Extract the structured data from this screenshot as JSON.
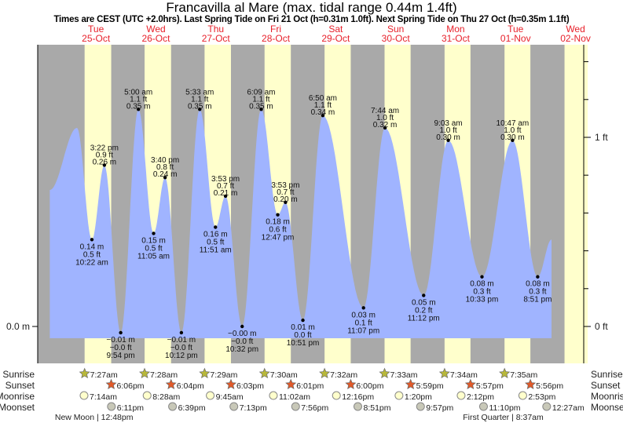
{
  "header": {
    "title": "Francavilla al Mare (max. tidal range 0.44m 1.4ft)",
    "subtitle": "Times are CEST (UTC +2.0hrs). Last Spring Tide on Fri 21 Oct (h=0.31m 1.0ft). Next Spring Tide on Thu 27 Oct (h=0.35m 1.1ft)"
  },
  "colors": {
    "day": "#ffffcc",
    "night": "#a9a9a9",
    "water": "#a0b4ff",
    "daylabel": "#e8202a",
    "sunrise": "#b8b83a",
    "sunset": "#e05a2a",
    "moonrise": "#ffffcc",
    "moonset": "#c8c8b8"
  },
  "chart_data": {
    "type": "area",
    "title": "Francavilla al Mare (max. tidal range 0.44m 1.4ft)",
    "days": [
      {
        "dow": "Tue",
        "date": "25-Oct"
      },
      {
        "dow": "Wed",
        "date": "26-Oct"
      },
      {
        "dow": "Thu",
        "date": "27-Oct"
      },
      {
        "dow": "Fri",
        "date": "28-Oct"
      },
      {
        "dow": "Sat",
        "date": "29-Oct"
      },
      {
        "dow": "Sun",
        "date": "30-Oct"
      },
      {
        "dow": "Mon",
        "date": "31-Oct"
      },
      {
        "dow": "Tue",
        "date": "01-Nov"
      },
      {
        "dow": "Wed",
        "date": "02-Nov"
      }
    ],
    "left_axis": {
      "label": "0.0 m",
      "value_m": 0
    },
    "right_axis": {
      "ticks_ft": [
        0,
        0.2,
        0.4,
        0.6,
        0.8,
        1.0,
        1.2,
        1.4
      ],
      "labels": [
        {
          "ft": 0,
          "text": "0 ft"
        },
        {
          "ft": 1,
          "text": "1 ft"
        }
      ]
    },
    "curve_start": {
      "day": -0.27,
      "m": 0.22
    },
    "curve_end": {
      "day": 8.1,
      "m": 0.14
    },
    "extremes": [
      {
        "day": 0,
        "hour": 4.4,
        "m": 0.32,
        "type": "high",
        "labeled": false
      },
      {
        "day": 0,
        "hour": 10.37,
        "m": 0.14,
        "type": "low",
        "time": "10:22 am",
        "ft": "0.5 ft",
        "mtext": "0.14 m"
      },
      {
        "day": 0,
        "hour": 15.37,
        "m": 0.26,
        "type": "high",
        "time": "3:22 pm",
        "ft": "0.9 ft",
        "mtext": "0.26 m"
      },
      {
        "day": 0,
        "hour": 21.9,
        "m": -0.01,
        "type": "low",
        "time": "9:54 pm",
        "ft": "−0.0 ft",
        "mtext": "−0.01 m"
      },
      {
        "day": 1,
        "hour": 5.0,
        "m": 0.35,
        "type": "high",
        "time": "5:00 am",
        "ft": "1.1 ft",
        "mtext": "0.35 m"
      },
      {
        "day": 1,
        "hour": 11.08,
        "m": 0.15,
        "type": "low",
        "time": "11:05 am",
        "ft": "0.5 ft",
        "mtext": "0.15 m"
      },
      {
        "day": 1,
        "hour": 15.67,
        "m": 0.24,
        "type": "high",
        "time": "3:40 pm",
        "ft": "0.8 ft",
        "mtext": "0.24 m"
      },
      {
        "day": 1,
        "hour": 22.2,
        "m": -0.01,
        "type": "low",
        "time": "10:12 pm",
        "ft": "−0.0 ft",
        "mtext": "−0.01 m"
      },
      {
        "day": 2,
        "hour": 5.55,
        "m": 0.35,
        "type": "high",
        "time": "5:33 am",
        "ft": "1.1 ft",
        "mtext": "0.35 m"
      },
      {
        "day": 2,
        "hour": 11.85,
        "m": 0.16,
        "type": "low",
        "time": "11:51 am",
        "ft": "0.5 ft",
        "mtext": "0.16 m"
      },
      {
        "day": 2,
        "hour": 15.88,
        "m": 0.21,
        "type": "high",
        "time": "3:53 pm",
        "ft": "0.7 ft",
        "mtext": "0.21 m"
      },
      {
        "day": 2,
        "hour": 22.53,
        "m": 0.0,
        "type": "low",
        "time": "10:32 pm",
        "ft": "−0.0 ft",
        "mtext": "−0.00 m"
      },
      {
        "day": 3,
        "hour": 6.15,
        "m": 0.35,
        "type": "high",
        "time": "6:09 am",
        "ft": "1.1 ft",
        "mtext": "0.35 m"
      },
      {
        "day": 3,
        "hour": 12.78,
        "m": 0.18,
        "type": "low",
        "time": "12:47 pm",
        "ft": "0.6 ft",
        "mtext": "0.18 m"
      },
      {
        "day": 3,
        "hour": 15.88,
        "m": 0.2,
        "type": "high",
        "time": "3:53 pm",
        "ft": "0.7 ft",
        "mtext": "0.20 m"
      },
      {
        "day": 3,
        "hour": 22.85,
        "m": 0.01,
        "type": "low",
        "time": "10:51 pm",
        "ft": "0.0 ft",
        "mtext": "0.01 m"
      },
      {
        "day": 4,
        "hour": 6.83,
        "m": 0.34,
        "type": "high",
        "time": "6:50 am",
        "ft": "1.1 ft",
        "mtext": "0.34 m"
      },
      {
        "day": 4,
        "hour": 23.12,
        "m": 0.03,
        "type": "low",
        "time": "11:07 pm",
        "ft": "0.1 ft",
        "mtext": "0.03 m"
      },
      {
        "day": 5,
        "hour": 7.73,
        "m": 0.32,
        "type": "high",
        "time": "7:44 am",
        "ft": "1.0 ft",
        "mtext": "0.32 m"
      },
      {
        "day": 5,
        "hour": 23.2,
        "m": 0.05,
        "type": "low",
        "time": "11:12 pm",
        "ft": "0.2 ft",
        "mtext": "0.05 m"
      },
      {
        "day": 6,
        "hour": 9.05,
        "m": 0.3,
        "type": "high",
        "time": "9:03 am",
        "ft": "1.0 ft",
        "mtext": "0.30 m"
      },
      {
        "day": 6,
        "hour": 22.55,
        "m": 0.08,
        "type": "low",
        "time": "10:33 pm",
        "ft": "0.3 ft",
        "mtext": "0.08 m"
      },
      {
        "day": 7,
        "hour": 10.78,
        "m": 0.3,
        "type": "high",
        "time": "10:47 am",
        "ft": "1.0 ft",
        "mtext": "0.30 m"
      },
      {
        "day": 7,
        "hour": 20.85,
        "m": 0.08,
        "type": "low",
        "time": "8:51 pm",
        "ft": "0.3 ft",
        "mtext": "0.08 m"
      }
    ],
    "sun": [
      {
        "rise": "7:27am",
        "rh": 7.45,
        "set": "6:06pm",
        "sh": 18.1
      },
      {
        "rise": "7:28am",
        "rh": 7.47,
        "set": "6:04pm",
        "sh": 18.07
      },
      {
        "rise": "7:29am",
        "rh": 7.48,
        "set": "6:03pm",
        "sh": 18.05
      },
      {
        "rise": "7:30am",
        "rh": 7.5,
        "set": "6:01pm",
        "sh": 18.02
      },
      {
        "rise": "7:32am",
        "rh": 7.53,
        "set": "6:00pm",
        "sh": 18.0
      },
      {
        "rise": "7:33am",
        "rh": 7.55,
        "set": "5:59pm",
        "sh": 17.98
      },
      {
        "rise": "7:34am",
        "rh": 7.57,
        "set": "5:57pm",
        "sh": 17.95
      },
      {
        "rise": "7:35am",
        "rh": 7.58,
        "set": "5:56pm",
        "sh": 17.93
      },
      {
        "rh": 7.6,
        "sh": 17.9
      }
    ],
    "moonrise": [
      {
        "day": 0,
        "h": 7.23,
        "t": "7:14am"
      },
      {
        "day": 1,
        "h": 8.47,
        "t": "8:28am"
      },
      {
        "day": 2,
        "h": 9.75,
        "t": "9:45am"
      },
      {
        "day": 3,
        "h": 11.03,
        "t": "11:02am"
      },
      {
        "day": 4,
        "h": 12.27,
        "t": "12:16pm"
      },
      {
        "day": 5,
        "h": 13.33,
        "t": "1:20pm"
      },
      {
        "day": 6,
        "h": 14.2,
        "t": "2:12pm"
      },
      {
        "day": 7,
        "h": 14.88,
        "t": "2:53pm"
      }
    ],
    "moonset": [
      {
        "day": 0,
        "h": 18.18,
        "t": "6:11pm"
      },
      {
        "day": 1,
        "h": 18.65,
        "t": "6:39pm"
      },
      {
        "day": 2,
        "h": 19.22,
        "t": "7:13pm"
      },
      {
        "day": 3,
        "h": 19.93,
        "t": "7:56pm"
      },
      {
        "day": 4,
        "h": 20.85,
        "t": "8:51pm"
      },
      {
        "day": 5,
        "h": 21.95,
        "t": "9:57pm"
      },
      {
        "day": 6,
        "h": 23.17,
        "t": "11:10pm"
      },
      {
        "day": 8,
        "h": 0.45,
        "t": "12:27am"
      }
    ],
    "moon_phases": [
      {
        "day": 0,
        "h": 12.8,
        "text": "New Moon | 12:48pm"
      },
      {
        "day": 7,
        "h": 8.62,
        "text": "First Quarter | 8:37am"
      }
    ],
    "row_labels": {
      "sunrise": "Sunrise",
      "sunset": "Sunset",
      "moonrise": "Moonrise",
      "moonset": "Moonset"
    }
  }
}
